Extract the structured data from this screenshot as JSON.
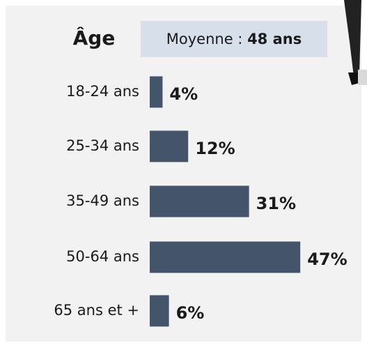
{
  "chart_data": {
    "type": "bar",
    "orientation": "horizontal",
    "title": "Âge",
    "annotation": {
      "label": "Moyenne :",
      "value": "48 ans"
    },
    "categories": [
      "18-24 ans",
      "25-34 ans",
      "35-49 ans",
      "50-64 ans",
      "65 ans et +"
    ],
    "values": [
      4,
      12,
      31,
      47,
      6
    ],
    "value_labels": [
      "4%",
      "12%",
      "31%",
      "47%",
      "6%"
    ],
    "color": "#44546a"
  }
}
